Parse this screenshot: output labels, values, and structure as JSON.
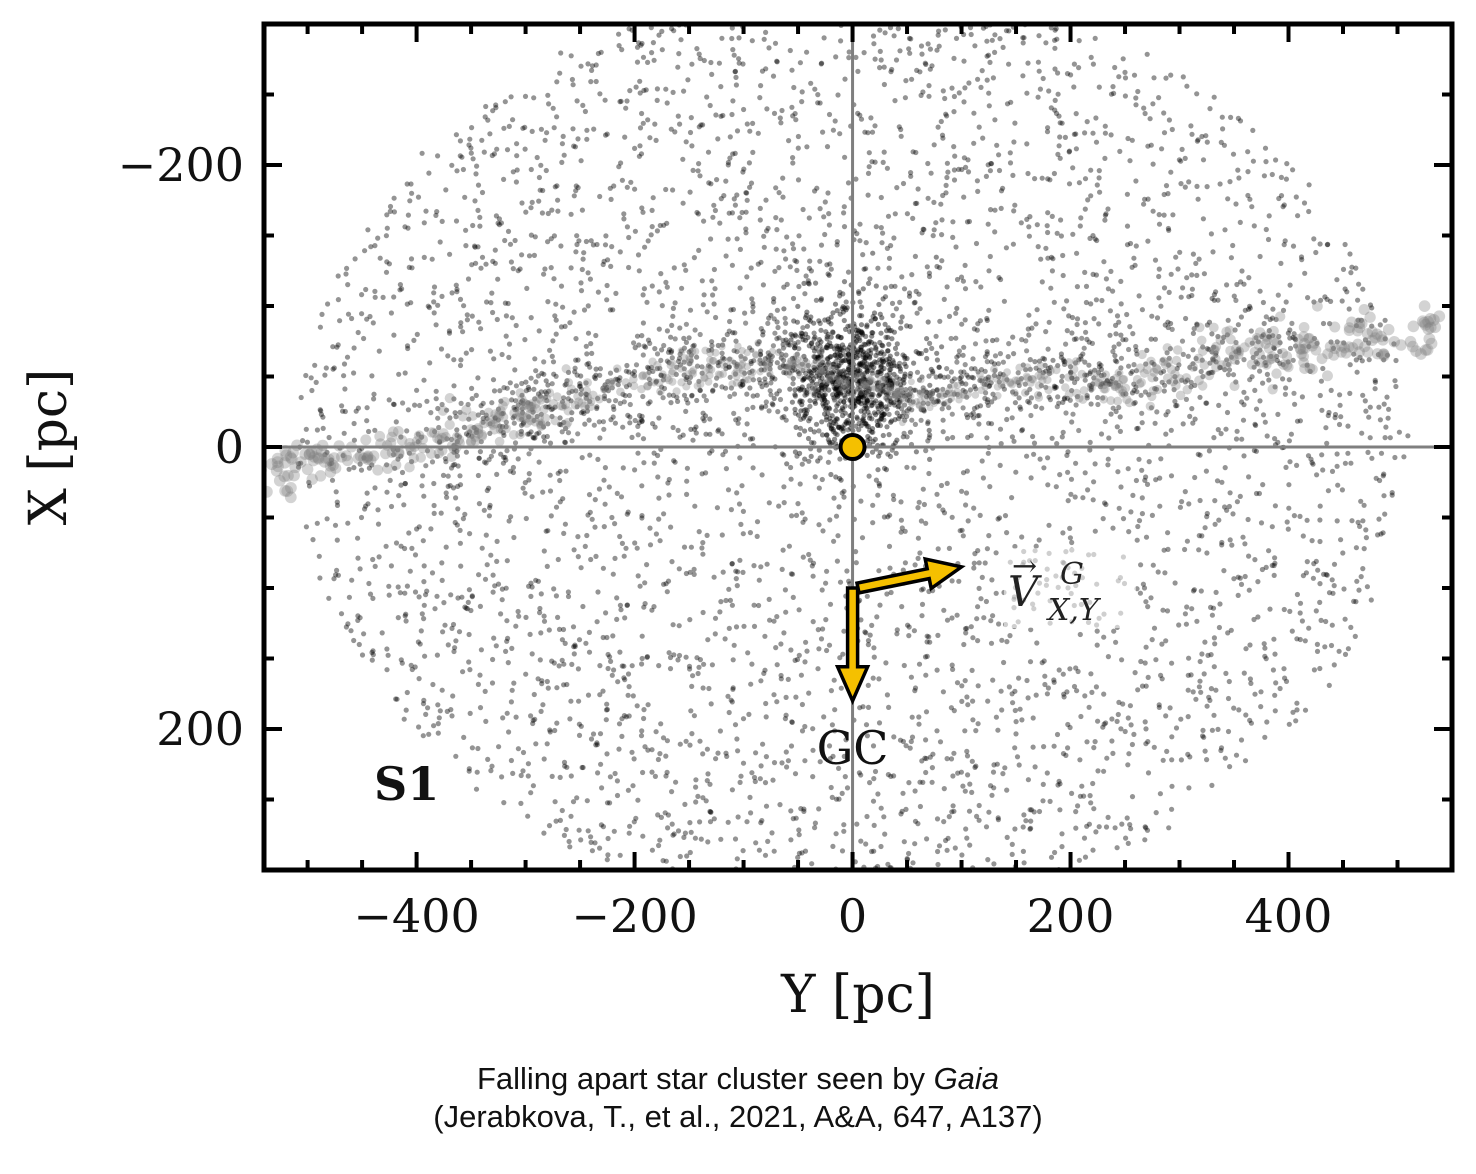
{
  "chart_data": {
    "type": "scatter",
    "title": "",
    "xlabel": "Y [pc]",
    "ylabel": "X [pc]",
    "xlim": [
      -540,
      550
    ],
    "ylim": [
      -300,
      300
    ],
    "y_inverted": true,
    "x_ticks": [
      -400,
      -200,
      0,
      200,
      400
    ],
    "y_ticks": [
      -200,
      0,
      200
    ],
    "x_tick_labels": [
      "−400",
      "−200",
      "0",
      "200",
      "400"
    ],
    "y_tick_labels": [
      "−200",
      "0",
      "200"
    ],
    "panel_label": "S1",
    "series": [
      {
        "description_kind": "field stars",
        "color": "#000000",
        "opacity": 0.4,
        "x_range": [
          -540,
          550
        ],
        "y_range": [
          -300,
          300
        ],
        "density_peak": {
          "x": 0,
          "y": -50
        }
      },
      {
        "description_kind": "tidal tails",
        "color": "#808080",
        "path": [
          [
            -540,
            20
          ],
          [
            -450,
            5
          ],
          [
            -350,
            -10
          ],
          [
            -250,
            -35
          ],
          [
            -150,
            -55
          ],
          [
            -60,
            -60
          ],
          [
            0,
            -45
          ],
          [
            60,
            -35
          ],
          [
            150,
            -50
          ],
          [
            250,
            -45
          ],
          [
            350,
            -65
          ],
          [
            450,
            -75
          ],
          [
            550,
            -80
          ]
        ]
      }
    ],
    "reference_lines": {
      "x": 0,
      "y": 0,
      "color": "#7f7f7f"
    },
    "sun_marker": {
      "x": 0,
      "y": 0,
      "color": "#f5c000"
    },
    "arrows": [
      {
        "name": "GC",
        "from": [
          0,
          100
        ],
        "to": [
          0,
          180
        ],
        "color": "#f5c000"
      },
      {
        "name": "velocity",
        "from": [
          5,
          100
        ],
        "to": [
          100,
          85
        ],
        "color": "#f5c000"
      }
    ],
    "annotations": {
      "gc": "GC",
      "velocity_main": "V",
      "velocity_super": "G",
      "velocity_sub": "X,Y"
    }
  },
  "caption": {
    "line1_prefix": "Falling apart star cluster seen by ",
    "line1_italic": "Gaia",
    "line2": "(Jerabkova, T., et al., 2021, A&A, 647, A137)"
  }
}
